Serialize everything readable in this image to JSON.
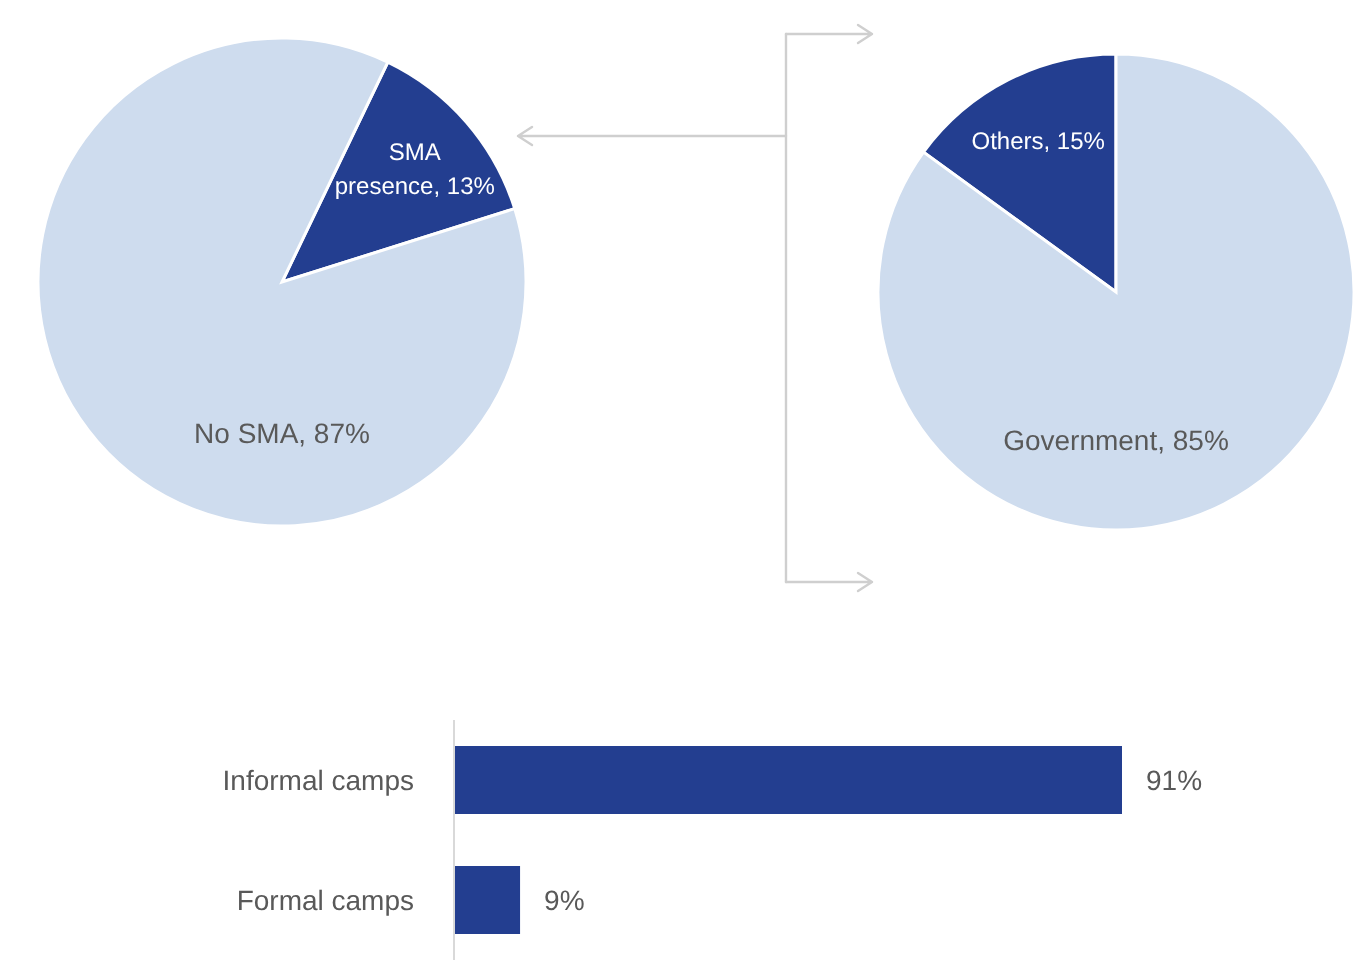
{
  "chart_data": [
    {
      "type": "pie",
      "categories": [
        "SMA presence",
        "No SMA"
      ],
      "values": [
        13,
        87
      ],
      "colors": [
        "#233e90",
        "#cedcee"
      ],
      "value_labels": [
        "13%",
        "87%"
      ]
    },
    {
      "type": "pie",
      "categories": [
        "Others",
        "Government"
      ],
      "values": [
        15,
        85
      ],
      "colors": [
        "#233e90",
        "#cedcee"
      ],
      "value_labels": [
        "15%",
        "85%"
      ]
    },
    {
      "type": "bar",
      "orientation": "horizontal",
      "categories": [
        "Informal camps",
        "Formal camps"
      ],
      "values": [
        91,
        9
      ],
      "color": "#233e90",
      "value_labels": [
        "91%",
        "9%"
      ]
    }
  ]
}
